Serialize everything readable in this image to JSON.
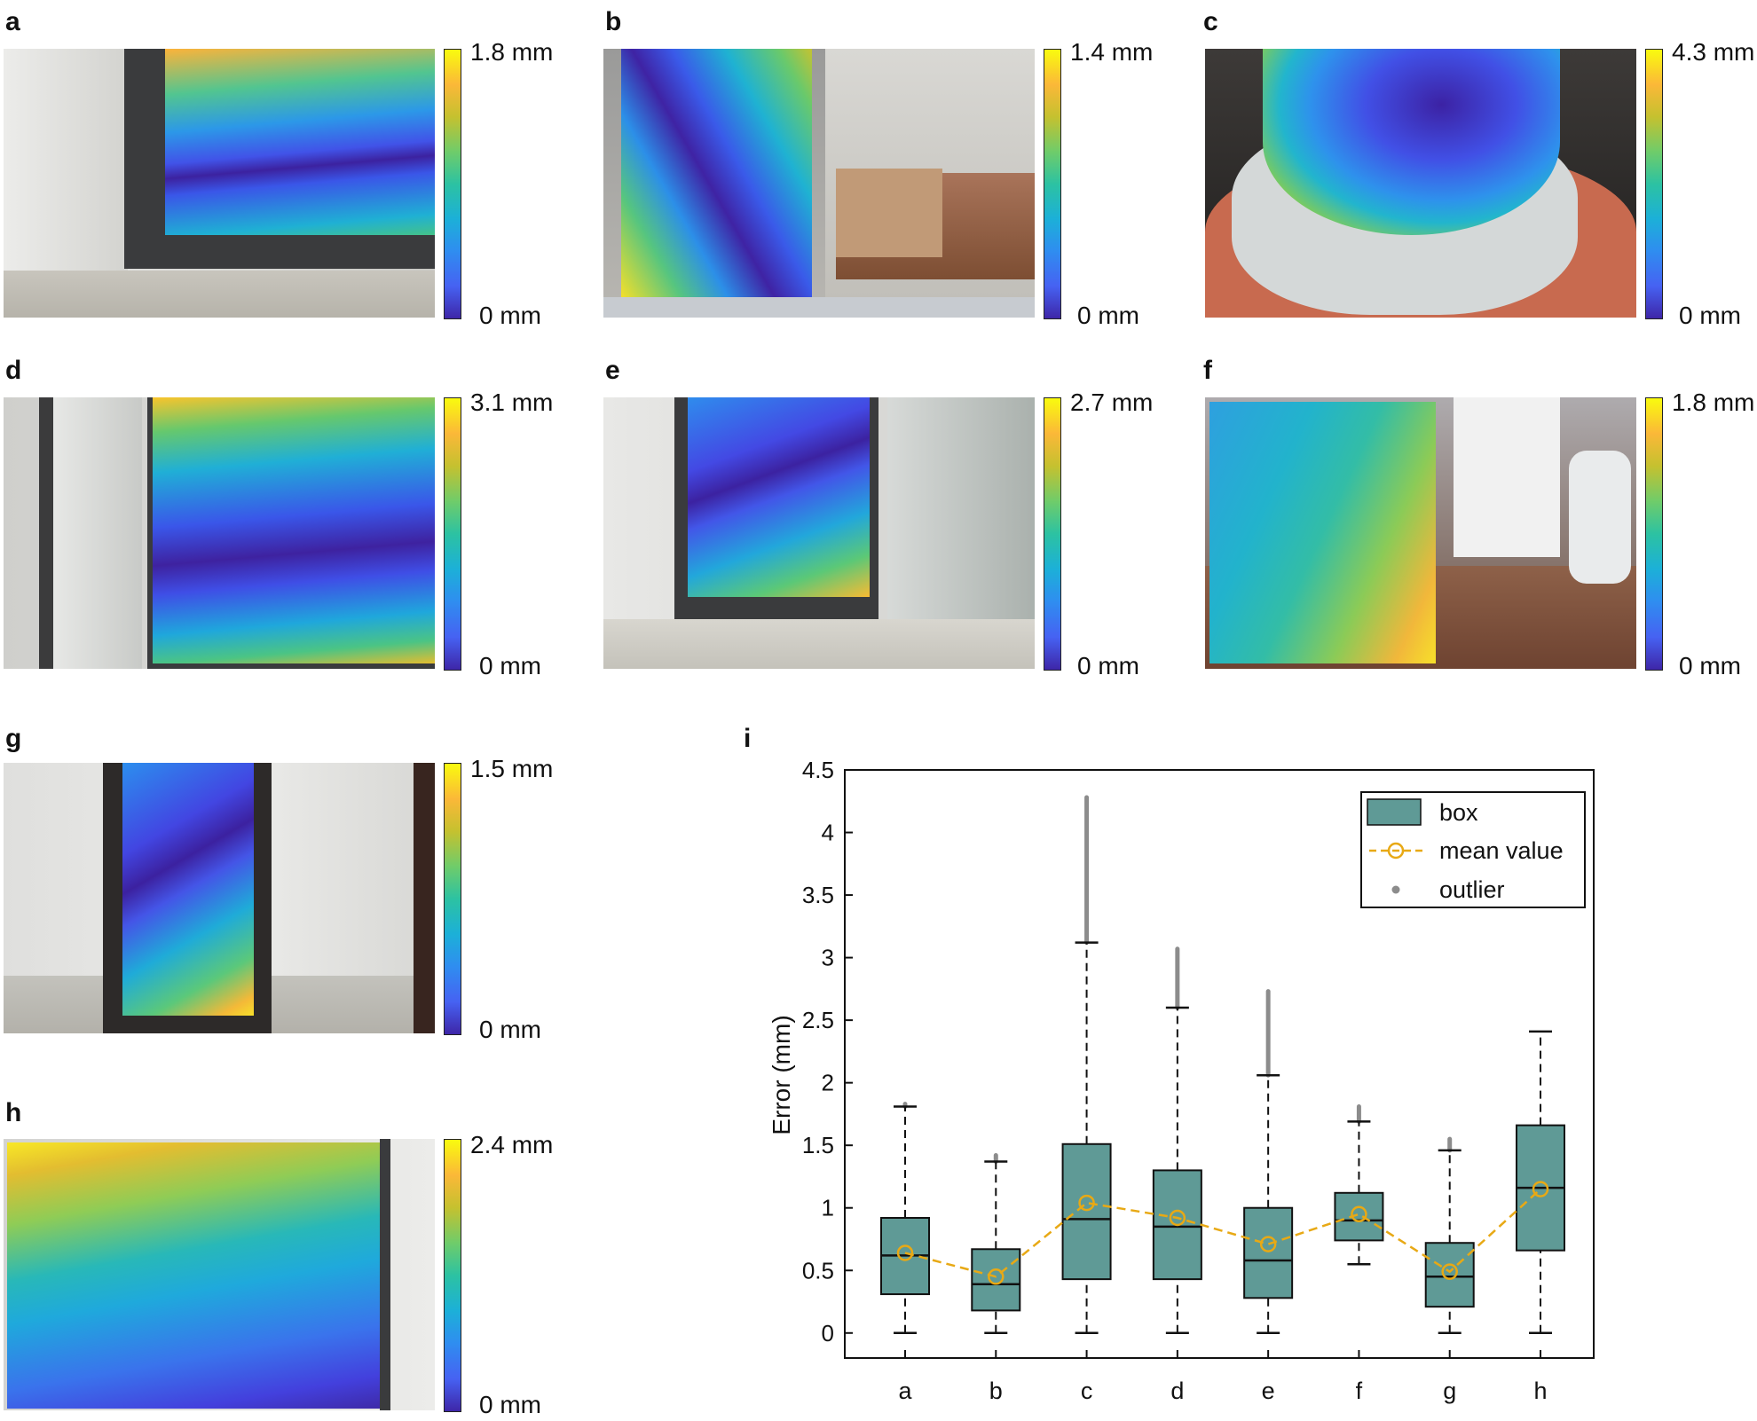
{
  "colorbar_unit": "mm",
  "panels": [
    {
      "label": "a",
      "max": "1.8 mm",
      "min": "0 mm"
    },
    {
      "label": "b",
      "max": "1.4 mm",
      "min": "0 mm"
    },
    {
      "label": "c",
      "max": "4.3 mm",
      "min": "0 mm"
    },
    {
      "label": "d",
      "max": "3.1 mm",
      "min": "0 mm"
    },
    {
      "label": "e",
      "max": "2.7 mm",
      "min": "0 mm"
    },
    {
      "label": "f",
      "max": "1.8 mm",
      "min": "0 mm"
    },
    {
      "label": "g",
      "max": "1.5 mm",
      "min": "0 mm"
    },
    {
      "label": "h",
      "max": "2.4 mm",
      "min": "0 mm"
    }
  ],
  "chart_data": {
    "panel_label": "i",
    "type": "box",
    "title": "",
    "xlabel": "",
    "ylabel": "Error (mm)",
    "ylim": [
      -0.2,
      4.5
    ],
    "yticks": [
      0,
      0.5,
      1,
      1.5,
      2,
      2.5,
      3,
      3.5,
      4,
      4.5
    ],
    "ytick_labels": [
      "0",
      "0.5",
      "1",
      "1.5",
      "2",
      "2.5",
      "3",
      "3.5",
      "4",
      "4.5"
    ],
    "categories": [
      "a",
      "b",
      "c",
      "d",
      "e",
      "f",
      "g",
      "h"
    ],
    "boxes": [
      {
        "name": "a",
        "min": 0,
        "q1": 0.31,
        "median": 0.62,
        "q3": 0.92,
        "max": 1.81,
        "mean": 0.64,
        "outliers_to": 1.83
      },
      {
        "name": "b",
        "min": 0,
        "q1": 0.18,
        "median": 0.39,
        "q3": 0.67,
        "max": 1.37,
        "mean": 0.45,
        "outliers_to": 1.42
      },
      {
        "name": "c",
        "min": 0,
        "q1": 0.43,
        "median": 0.91,
        "q3": 1.51,
        "max": 3.12,
        "mean": 1.04,
        "outliers_to": 4.28
      },
      {
        "name": "d",
        "min": 0,
        "q1": 0.43,
        "median": 0.85,
        "q3": 1.3,
        "max": 2.6,
        "mean": 0.92,
        "outliers_to": 3.07
      },
      {
        "name": "e",
        "min": 0,
        "q1": 0.28,
        "median": 0.58,
        "q3": 1.0,
        "max": 2.06,
        "mean": 0.71,
        "outliers_to": 2.73
      },
      {
        "name": "f",
        "min": 0.55,
        "q1": 0.74,
        "median": 0.9,
        "q3": 1.12,
        "max": 1.69,
        "mean": 0.95,
        "outliers_to": 1.81
      },
      {
        "name": "g",
        "min": 0,
        "q1": 0.21,
        "median": 0.45,
        "q3": 0.72,
        "max": 1.46,
        "mean": 0.49,
        "outliers_to": 1.55
      },
      {
        "name": "h",
        "min": 0,
        "q1": 0.66,
        "median": 1.16,
        "q3": 1.66,
        "max": 2.41,
        "mean": 1.15,
        "outliers_to": null
      }
    ],
    "legend": {
      "position": "top-right",
      "entries": [
        "box",
        "mean value",
        "outlier"
      ]
    },
    "colors": {
      "box": "#5f9a96",
      "mean": "#e8a915",
      "outlier": "#8c8c8c",
      "whisker": "#111111"
    }
  }
}
